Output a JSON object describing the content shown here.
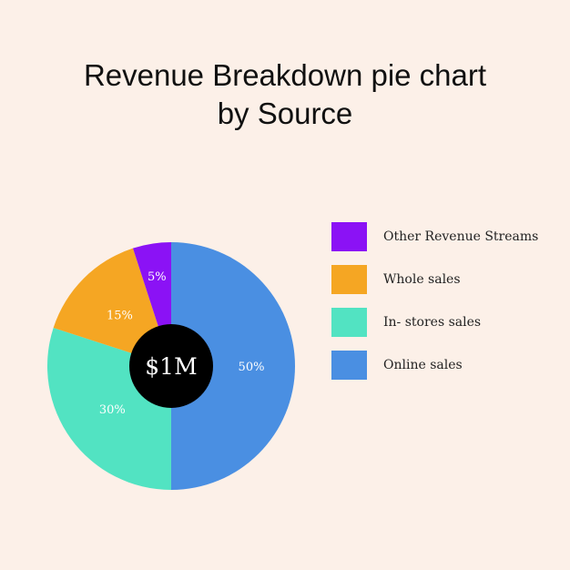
{
  "title_lines": [
    "Revenue Breakdown pie chart",
    "by Source"
  ],
  "center_label": "$1M",
  "chart_data": {
    "type": "pie",
    "title": "Revenue Breakdown pie chart by Source",
    "slices": [
      {
        "name": "Online sales",
        "value": 50,
        "label": "50%",
        "color": "#4a8fe2"
      },
      {
        "name": "In- stores sales",
        "value": 30,
        "label": "30%",
        "color": "#52e3c2"
      },
      {
        "name": "Whole sales",
        "value": 15,
        "label": "15%",
        "color": "#f5a623"
      },
      {
        "name": "Other Revenue Streams",
        "value": 5,
        "label": "5%",
        "color": "#8b12f5"
      }
    ],
    "legend": {
      "placement": "right",
      "order": [
        "Other Revenue Streams",
        "Whole sales",
        "In- stores sales",
        "Online sales"
      ]
    }
  }
}
